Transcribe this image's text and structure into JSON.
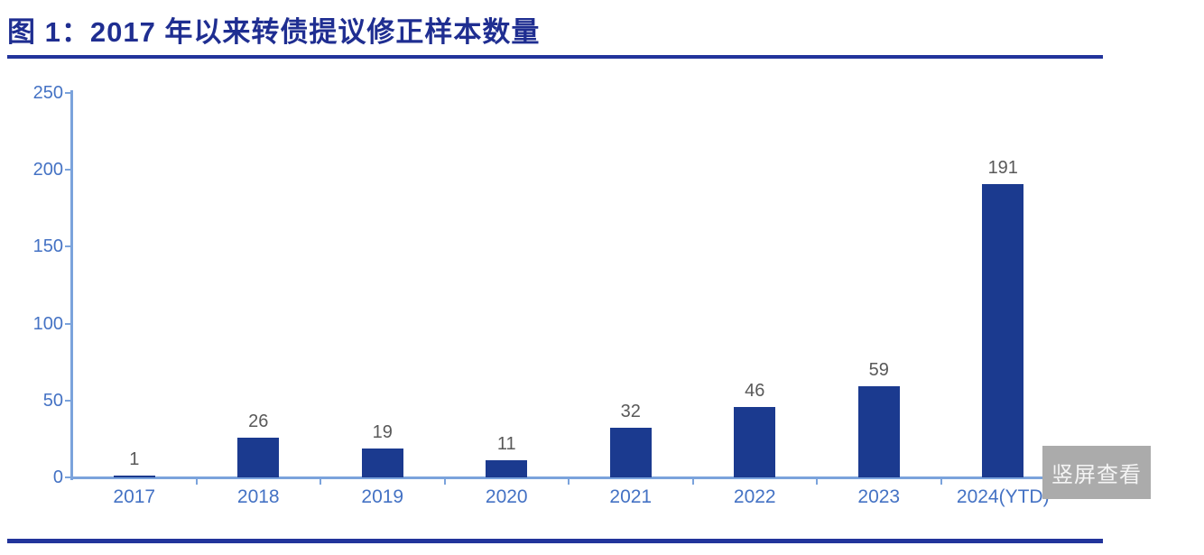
{
  "figure": {
    "title": "图 1：2017 年以来转债提议修正样本数量"
  },
  "chart_data": {
    "type": "bar",
    "title": "图 1：2017 年以来转债提议修正样本数量",
    "categories": [
      "2017",
      "2018",
      "2019",
      "2020",
      "2021",
      "2022",
      "2023",
      "2024(YTD)"
    ],
    "values": [
      1,
      26,
      19,
      11,
      32,
      46,
      59,
      191
    ],
    "data_labels": [
      "1",
      "26",
      "19",
      "11",
      "32",
      "46",
      "59",
      "191"
    ],
    "xlabel": "",
    "ylabel": "",
    "ylim": [
      0,
      250
    ],
    "yticks": [
      0,
      50,
      100,
      150,
      200,
      250
    ],
    "grid": false,
    "legend": "none"
  },
  "overlay": {
    "portrait_view_button": "竖屏查看"
  },
  "colors": {
    "title_navy": "#1f2e91",
    "rule_navy": "#22349b",
    "bar_navy": "#1b3a8f",
    "axis_line_blue": "#7ba3dc",
    "tick_label_blue": "#4472c4",
    "data_label_gray": "#595959",
    "button_gray": "#ababab",
    "button_text": "#f4f4f4"
  }
}
